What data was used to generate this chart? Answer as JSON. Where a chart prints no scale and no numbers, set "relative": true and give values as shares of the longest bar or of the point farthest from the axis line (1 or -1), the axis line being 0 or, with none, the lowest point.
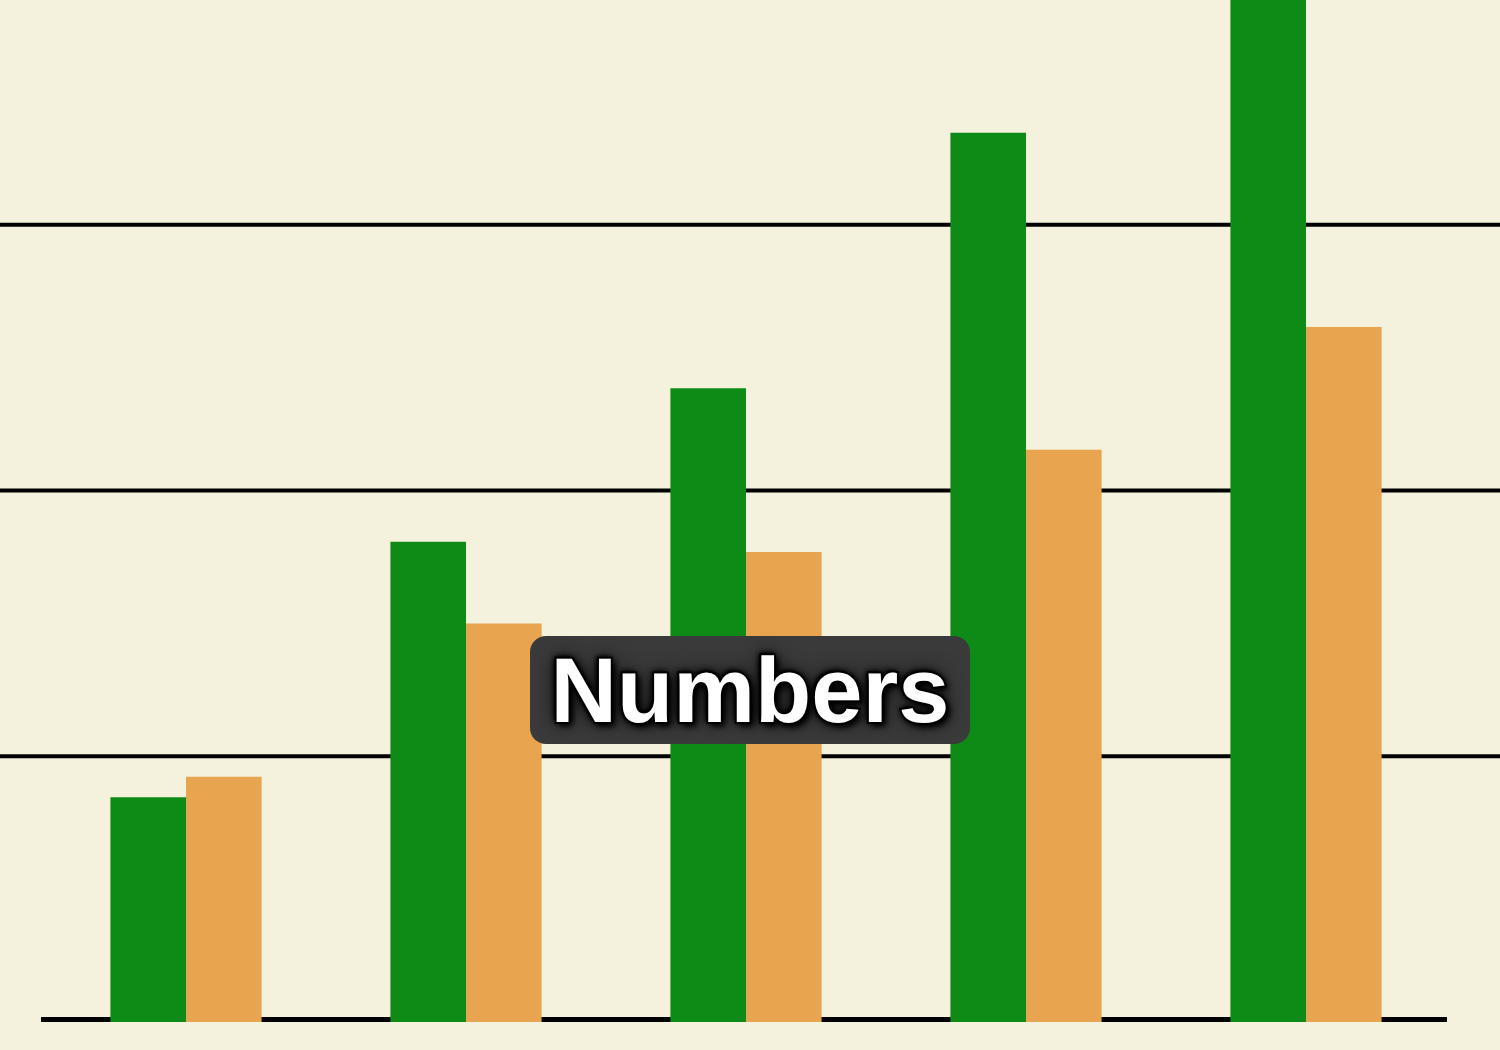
{
  "chart_data": {
    "type": "bar",
    "title": "Numbers",
    "relative": true,
    "ref_lines": [
      {
        "axis": "y",
        "value": 0.26,
        "color": "#000000"
      },
      {
        "axis": "y",
        "value": 0.52,
        "color": "#000000"
      },
      {
        "axis": "y",
        "value": 0.78,
        "color": "#000000"
      }
    ],
    "categories": [
      null,
      null,
      null,
      null,
      null
    ],
    "series": [
      {
        "color": "#0e8a16",
        "values": [
          0.22,
          0.47,
          0.62,
          0.87,
          1
        ]
      },
      {
        "color": "#e8a44e",
        "values": [
          0.24,
          0.39,
          0.46,
          0.56,
          0.68
        ]
      }
    ]
  }
}
